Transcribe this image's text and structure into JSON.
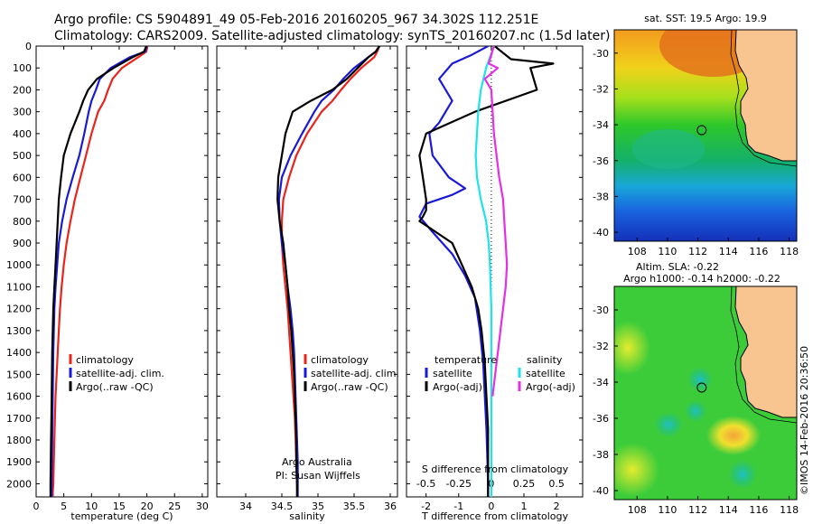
{
  "header": {
    "line1": "Argo profile: CS 5904891_49 05-Feb-2016 20160205_967 34.302S 112.251E",
    "line2": "Climatology: CARS2009. Satellite-adjusted climatology: synTS_20160207.nc (1.5d later)"
  },
  "colors": {
    "climatology": "#e8241c",
    "satellite": "#1a1ad6",
    "argo": "#000000",
    "sat_salinity": "#1ee3e8",
    "argo_salinity": "#e62ee6"
  },
  "chart_data": [
    {
      "type": "line",
      "id": "temperature",
      "xlabel": "temperature (deg C)",
      "ylabel": "",
      "xlim": [
        0,
        31
      ],
      "ylim": [
        2060,
        0
      ],
      "xticks": [
        "0",
        "5",
        "10",
        "15",
        "20",
        "25",
        "30"
      ],
      "yticks": [
        "0",
        "100",
        "200",
        "300",
        "400",
        "500",
        "600",
        "700",
        "800",
        "900",
        "1000",
        "1100",
        "1200",
        "1300",
        "1400",
        "1500",
        "1600",
        "1700",
        "1800",
        "1900",
        "2000"
      ],
      "legend": [
        "climatology",
        "satellite-adj. clim.",
        "Argo(..raw -QC)"
      ],
      "series": [
        {
          "name": "climatology",
          "x": [
            20.1,
            19.9,
            18.5,
            15.5,
            13.8,
            13,
            12.3,
            11.2,
            10,
            9,
            8,
            7,
            6.2,
            5.5,
            5,
            4.6,
            4.3,
            4.1,
            3.9,
            3.7,
            3.5,
            3.4,
            3.3,
            3.2,
            3.1,
            3.05,
            3,
            3,
            3,
            2.9,
            2.9
          ],
          "y": [
            0,
            25,
            50,
            100,
            150,
            200,
            250,
            300,
            400,
            500,
            600,
            700,
            800,
            900,
            1000,
            1100,
            1200,
            1300,
            1400,
            1500,
            1600,
            1700,
            1800,
            1900,
            2000,
            2020,
            2040,
            2050,
            2055,
            2058,
            2060
          ]
        },
        {
          "name": "satellite-adj. clim.",
          "x": [
            20,
            19.7,
            17,
            13.5,
            11.5,
            10.8,
            10,
            9.5,
            8.7,
            7.8,
            6.6,
            5.5,
            4.7,
            4.1,
            3.8,
            3.5,
            3.3,
            3.2,
            3.1,
            3.05,
            3.0,
            2.95,
            2.9,
            2.85,
            2.8,
            2.8
          ],
          "y": [
            0,
            25,
            50,
            100,
            150,
            200,
            250,
            300,
            400,
            500,
            600,
            700,
            800,
            900,
            1000,
            1100,
            1200,
            1300,
            1400,
            1500,
            1600,
            1700,
            1800,
            1900,
            2000,
            2060
          ]
        },
        {
          "name": "Argo(..raw -QC)",
          "x": [
            19.9,
            19.5,
            17.5,
            14,
            11,
            9.4,
            8.5,
            7.8,
            6.2,
            5,
            4.5,
            4.1,
            3.9,
            3.7,
            3.5,
            3.3,
            3.1,
            3.0,
            2.9,
            2.85,
            2.8,
            2.75,
            2.7,
            2.65,
            2.6,
            2.6
          ],
          "y": [
            0,
            25,
            50,
            100,
            150,
            200,
            250,
            300,
            400,
            500,
            600,
            700,
            800,
            900,
            1000,
            1100,
            1200,
            1300,
            1400,
            1500,
            1600,
            1700,
            1800,
            1900,
            2000,
            2060
          ]
        }
      ]
    },
    {
      "type": "line",
      "id": "salinity",
      "xlabel": "salinity",
      "ylabel": "",
      "xlim": [
        33.6,
        36.1
      ],
      "ylim": [
        2060,
        0
      ],
      "xticks": [
        "34",
        "34.5",
        "35",
        "35.5",
        "36"
      ],
      "legend": [
        "climatology",
        "satellite-adj. clim.",
        "Argo(..raw -QC)"
      ],
      "annotation_lines": [
        "Argo Australia",
        "PI: Susan Wijffels"
      ],
      "series": [
        {
          "name": "climatology",
          "x": [
            35.85,
            35.82,
            35.78,
            35.6,
            35.45,
            35.32,
            35.2,
            35.05,
            34.85,
            34.7,
            34.6,
            34.52,
            34.5,
            34.5,
            34.52,
            34.55,
            34.58,
            34.6,
            34.62,
            34.64,
            34.66,
            34.68,
            34.69,
            34.7,
            34.71,
            34.72
          ],
          "y": [
            0,
            25,
            50,
            100,
            150,
            200,
            250,
            300,
            400,
            500,
            600,
            700,
            800,
            900,
            1000,
            1100,
            1200,
            1300,
            1400,
            1500,
            1600,
            1700,
            1800,
            1900,
            2000,
            2060
          ]
        },
        {
          "name": "satellite-adj. clim.",
          "x": [
            35.85,
            35.8,
            35.7,
            35.5,
            35.35,
            35.22,
            35.05,
            34.95,
            34.78,
            34.62,
            34.5,
            34.46,
            34.47,
            34.5,
            34.55,
            34.58,
            34.62,
            34.65,
            34.67,
            34.68,
            34.69,
            34.7,
            34.71,
            34.72,
            34.72,
            34.72
          ],
          "y": [
            0,
            25,
            50,
            100,
            150,
            200,
            250,
            300,
            400,
            500,
            600,
            700,
            800,
            900,
            1000,
            1100,
            1200,
            1300,
            1400,
            1500,
            1600,
            1700,
            1800,
            1900,
            2000,
            2060
          ]
        },
        {
          "name": "Argo(..raw -QC)",
          "x": [
            35.85,
            35.8,
            35.7,
            35.55,
            35.4,
            35.2,
            34.9,
            34.65,
            34.55,
            34.5,
            34.45,
            34.44,
            34.47,
            34.52,
            34.55,
            34.58,
            34.6,
            34.63,
            34.65,
            34.67,
            34.68,
            34.69,
            34.7,
            34.7,
            34.71,
            34.71
          ],
          "y": [
            0,
            25,
            50,
            100,
            150,
            200,
            250,
            300,
            400,
            500,
            600,
            700,
            800,
            900,
            1000,
            1100,
            1200,
            1300,
            1400,
            1500,
            1600,
            1700,
            1800,
            1900,
            2000,
            2060
          ]
        }
      ]
    },
    {
      "type": "line",
      "id": "difference",
      "xlabel": "T difference from climatology",
      "x2label": "S difference from climatology",
      "xlim": [
        -2.6,
        2.8
      ],
      "ylim": [
        2060,
        0
      ],
      "xticks": [
        "-2",
        "-1",
        "0",
        "1",
        "2"
      ],
      "x2ticks": [
        "-0.5",
        "-0.25",
        "0",
        "0.25",
        "0.5"
      ],
      "legend_titles": [
        "temperature",
        "salinity"
      ],
      "legend": [
        "satellite",
        "Argo(-adj)",
        "satellite",
        "Argo(-adj)"
      ],
      "series": [
        {
          "name": "temperature satellite",
          "x": [
            -0.1,
            -0.6,
            -1.2,
            -1.6,
            -1.2,
            -1.4,
            -1.6,
            -1.9,
            -1.8,
            -1.3,
            -0.8,
            -1.2,
            -2.0,
            -2.2,
            -1.8,
            -1.2,
            -0.8,
            -0.5,
            -0.35,
            -0.25,
            -0.2,
            -0.15,
            -0.12,
            -0.1,
            -0.1
          ],
          "y": [
            0,
            40,
            80,
            150,
            250,
            300,
            350,
            400,
            500,
            600,
            650,
            680,
            720,
            780,
            850,
            950,
            1050,
            1150,
            1300,
            1450,
            1600,
            1750,
            1900,
            2000,
            2060
          ]
        },
        {
          "name": "temperature Argo(-adj)",
          "x": [
            0.1,
            0.6,
            1.9,
            1.2,
            1.4,
            -0.5,
            -2.0,
            -2.2,
            -2.1,
            -2.0,
            -2.0,
            -2.1,
            -2.2,
            -2.0,
            -1.2,
            -0.9,
            -0.6,
            -0.4,
            -0.3,
            -0.2,
            -0.15,
            -0.1,
            -0.1,
            -0.1,
            -0.1
          ],
          "y": [
            0,
            60,
            80,
            100,
            200,
            300,
            400,
            500,
            600,
            700,
            750,
            780,
            800,
            820,
            900,
            1000,
            1100,
            1200,
            1300,
            1450,
            1600,
            1750,
            1900,
            2000,
            2060
          ]
        },
        {
          "name": "salinity satellite",
          "x": [
            0.02,
            -0.04,
            -0.08,
            -0.1,
            -0.11,
            -0.12,
            -0.11,
            -0.08,
            -0.04,
            -0.02,
            -0.01,
            0.0,
            0.0,
            0.0,
            0.0
          ],
          "y": [
            0,
            100,
            200,
            300,
            400,
            500,
            600,
            700,
            800,
            900,
            1000,
            1200,
            1500,
            1800,
            2060
          ]
        },
        {
          "name": "salinity Argo(-adj)",
          "x": [
            0.02,
            -0.02,
            0.05,
            -0.05,
            0.0,
            0.02,
            0.06,
            0.09,
            0.1,
            0.11,
            0.12,
            0.11,
            0.09,
            0.07,
            0.05,
            0.03,
            0.01
          ],
          "y": [
            0,
            80,
            100,
            150,
            200,
            400,
            600,
            700,
            800,
            900,
            1000,
            1100,
            1200,
            1300,
            1400,
            1500,
            1600
          ]
        }
      ]
    },
    {
      "type": "heatmap",
      "id": "sst_map",
      "title": "sat. SST: 19.5 Argo: 19.9",
      "xlim": [
        106.5,
        118.5
      ],
      "ylim": [
        -40.5,
        -28.7
      ],
      "xticks": [
        "108",
        "110",
        "112",
        "114",
        "116",
        "118"
      ],
      "yticks": [
        "-30",
        "-32",
        "-34",
        "-36",
        "-38",
        "-40"
      ],
      "argo_position": {
        "lon": 112.25,
        "lat": -34.3
      }
    },
    {
      "type": "heatmap",
      "id": "sla_map",
      "title": "Altim. SLA: -0.22",
      "subtitle": "Argo h1000: -0.14 h2000: -0.22",
      "xlim": [
        106.5,
        118.5
      ],
      "ylim": [
        -40.5,
        -28.7
      ],
      "xticks": [
        "108",
        "110",
        "112",
        "114",
        "116",
        "118"
      ],
      "yticks": [
        "-30",
        "-32",
        "-34",
        "-36",
        "-38",
        "-40"
      ],
      "argo_position": {
        "lon": 112.25,
        "lat": -34.3
      }
    }
  ],
  "credit": "©IMOS 14-Feb-2016 20:36:50"
}
